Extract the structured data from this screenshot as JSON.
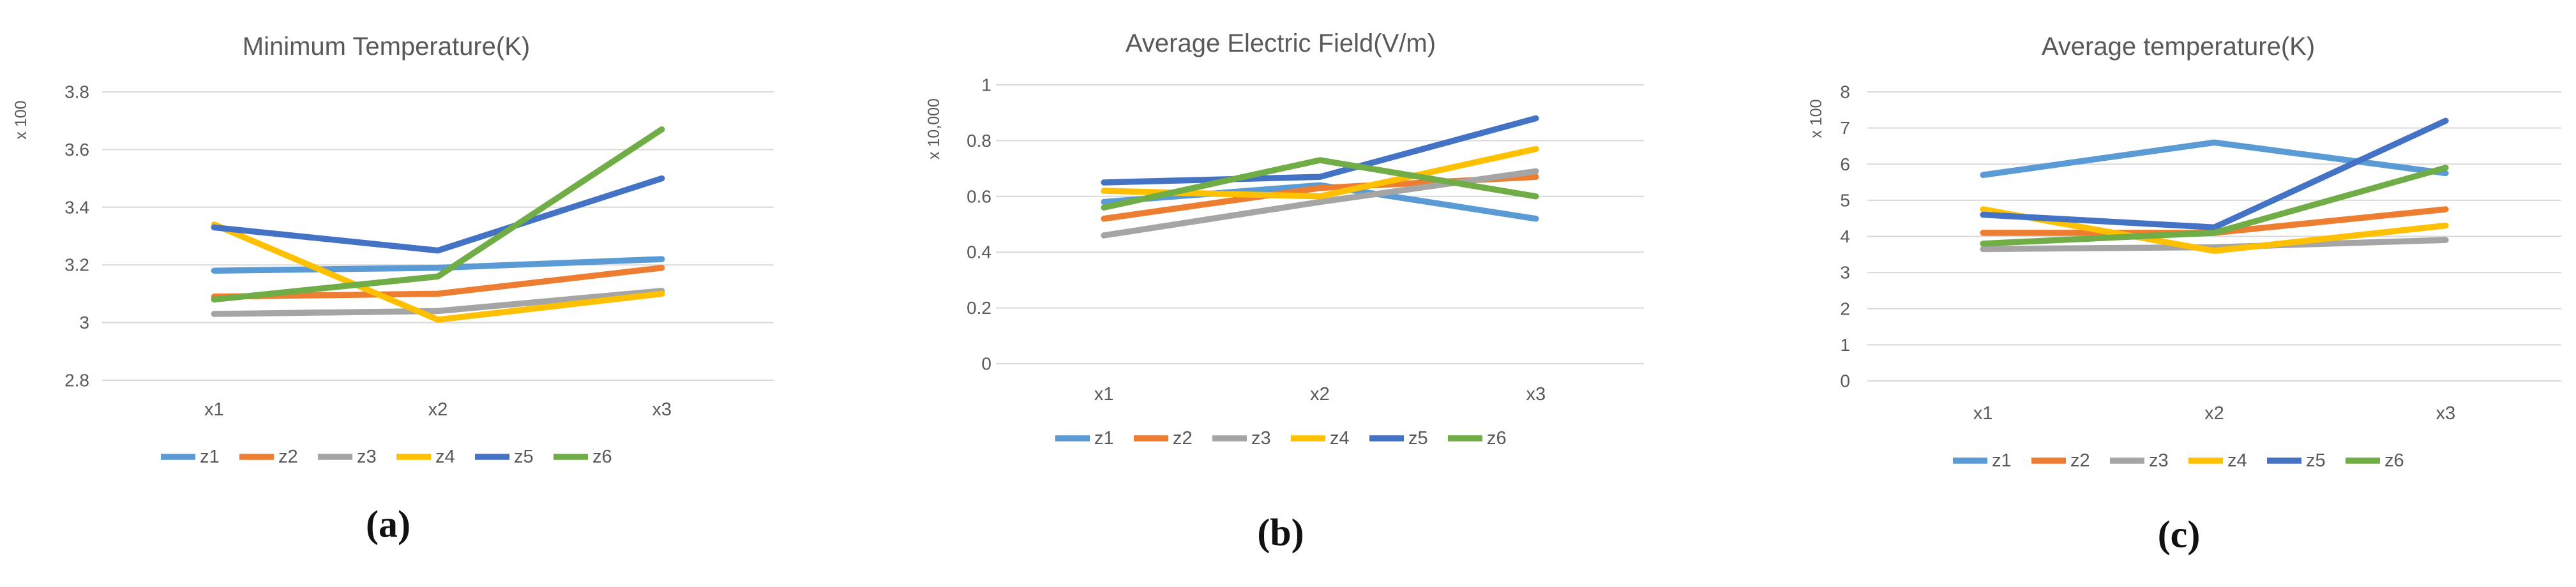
{
  "figure": {
    "background": "#FFFFFF",
    "text_color": "#595959",
    "gridline_color": "#D9D9D9",
    "caption_color": "#111111"
  },
  "chart_data": [
    {
      "type": "line",
      "title": "Minimum Temperature(K)",
      "axis_multiplier": "x 100",
      "caption": "(a)",
      "categories": [
        "x1",
        "x2",
        "x3"
      ],
      "ylim": [
        2.8,
        3.8
      ],
      "y_ticks": [
        "2.8",
        "3",
        "3.2",
        "3.4",
        "3.6",
        "3.8"
      ],
      "grid": true,
      "legend_position": "bottom",
      "series": [
        {
          "name": "z1",
          "color": "#5B9BD5",
          "values": [
            3.18,
            3.19,
            3.22
          ]
        },
        {
          "name": "z2",
          "color": "#ED7D31",
          "values": [
            3.09,
            3.1,
            3.19
          ]
        },
        {
          "name": "z3",
          "color": "#A5A5A5",
          "values": [
            3.03,
            3.04,
            3.11
          ]
        },
        {
          "name": "z4",
          "color": "#FFC000",
          "values": [
            3.34,
            3.01,
            3.1
          ]
        },
        {
          "name": "z5",
          "color": "#4472C4",
          "values": [
            3.33,
            3.25,
            3.5
          ]
        },
        {
          "name": "z6",
          "color": "#70AD47",
          "values": [
            3.08,
            3.16,
            3.67
          ]
        }
      ]
    },
    {
      "type": "line",
      "title": "Average Electric Field(V/m)",
      "axis_multiplier": "x 10,000",
      "caption": "(b)",
      "categories": [
        "x1",
        "x2",
        "x3"
      ],
      "ylim": [
        0,
        1
      ],
      "y_ticks": [
        "0",
        "0.2",
        "0.4",
        "0.6",
        "0.8",
        "1"
      ],
      "grid": true,
      "legend_position": "bottom",
      "series": [
        {
          "name": "z1",
          "color": "#5B9BD5",
          "values": [
            0.58,
            0.64,
            0.52
          ]
        },
        {
          "name": "z2",
          "color": "#ED7D31",
          "values": [
            0.52,
            0.63,
            0.67
          ]
        },
        {
          "name": "z3",
          "color": "#A5A5A5",
          "values": [
            0.46,
            0.58,
            0.69
          ]
        },
        {
          "name": "z4",
          "color": "#FFC000",
          "values": [
            0.62,
            0.6,
            0.77
          ]
        },
        {
          "name": "z5",
          "color": "#4472C4",
          "values": [
            0.65,
            0.67,
            0.88
          ]
        },
        {
          "name": "z6",
          "color": "#70AD47",
          "values": [
            0.56,
            0.73,
            0.6
          ]
        }
      ]
    },
    {
      "type": "line",
      "title": "Average temperature(K)",
      "axis_multiplier": "x 100",
      "caption": "(c)",
      "categories": [
        "x1",
        "x2",
        "x3"
      ],
      "ylim": [
        0,
        8
      ],
      "y_ticks": [
        "0",
        "1",
        "2",
        "3",
        "4",
        "5",
        "6",
        "7",
        "8"
      ],
      "grid": true,
      "legend_position": "bottom",
      "series": [
        {
          "name": "z1",
          "color": "#5B9BD5",
          "values": [
            5.7,
            6.6,
            5.75
          ]
        },
        {
          "name": "z2",
          "color": "#ED7D31",
          "values": [
            4.1,
            4.1,
            4.75
          ]
        },
        {
          "name": "z3",
          "color": "#A5A5A5",
          "values": [
            3.65,
            3.7,
            3.9
          ]
        },
        {
          "name": "z4",
          "color": "#FFC000",
          "values": [
            4.75,
            3.6,
            4.3
          ]
        },
        {
          "name": "z5",
          "color": "#4472C4",
          "values": [
            4.6,
            4.25,
            7.2
          ]
        },
        {
          "name": "z6",
          "color": "#70AD47",
          "values": [
            3.8,
            4.1,
            5.9
          ]
        }
      ]
    }
  ]
}
